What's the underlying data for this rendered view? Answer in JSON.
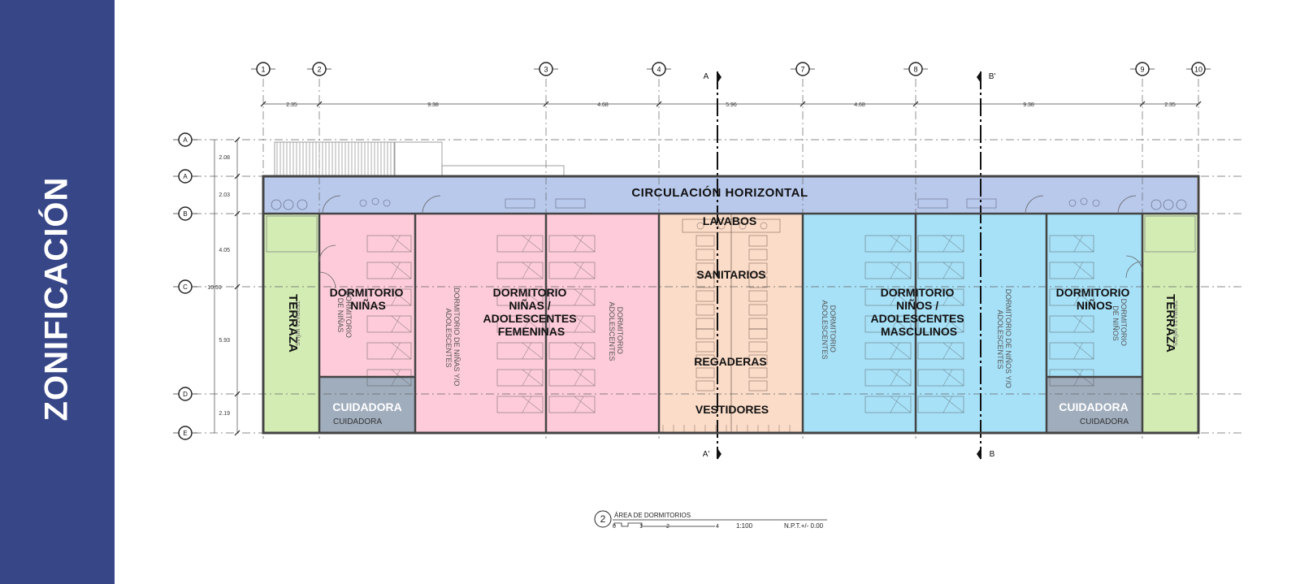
{
  "sidebar": {
    "title": "ZONIFICACIÓN"
  },
  "colors": {
    "sidebar": "#374687",
    "circulation": "#b9c9ec",
    "terrace": "#d3ecb4",
    "girls": "#fdcbd9",
    "sanitary": "#fbdcc8",
    "boys": "#a7e1f8",
    "caregiver": "#a0adbd"
  },
  "plan": {
    "axes_columns": [
      "1",
      "2",
      "3",
      "4",
      "7",
      "8",
      "9",
      "10"
    ],
    "axes_rows": [
      "A",
      "A",
      "B",
      "C",
      "D",
      "E"
    ],
    "dims_horizontal": [
      "2.35",
      "9.38",
      "4.68",
      "5.96",
      "4.68",
      "9.38",
      "2.35"
    ],
    "dims_vertical": [
      "2.08",
      "2.03",
      "4.05",
      "5.93",
      "2.19"
    ],
    "dim_total": "10.59",
    "section_marks": {
      "a_top": "A",
      "a_bottom": "A'",
      "b_top": "B'",
      "b_bottom": "B"
    },
    "zones": {
      "circulation": "CIRCULACIÓN HORIZONTAL",
      "terrace_left": "TERRAZA",
      "terrace_left_small": "TERRAZA NIÑAS",
      "terrace_right": "TERRAZA",
      "terrace_right_small": "TERRAZA NIÑOS",
      "girls_dorm": [
        "DORMITORIO",
        "NIÑAS"
      ],
      "girls_dorm_small": [
        "DORMITORIO",
        "DE NIÑAS"
      ],
      "girls_teen": [
        "DORMITORIO",
        "NIÑAS /",
        "ADOLESCENTES",
        "FEMENINAS"
      ],
      "girls_teen_small_a": [
        "DORMITORIO DE NIÑAS Y/O",
        "ADOLESCENTES"
      ],
      "girls_teen_small_b": [
        "DORMITORIO",
        "ADOLESCENTES"
      ],
      "lavabos": "LAVABOS",
      "sanitarios": "SANITARIOS",
      "regaderas": "REGADERAS",
      "vestidores": "VESTIDORES",
      "boys_teen": [
        "DORMITORIO",
        "NIÑOS /",
        "ADOLESCENTES",
        "MASCULINOS"
      ],
      "boys_teen_small_a": [
        "DORMITORIO",
        "ADOLESCENTES"
      ],
      "boys_teen_small_b": [
        "DORMITORIO DE NIÑOS Y/O",
        "ADOLESCENTES"
      ],
      "boys_dorm": [
        "DORMITORIO",
        "NIÑOS"
      ],
      "boys_dorm_small": [
        "DORMITORIO",
        "DE NIÑOS"
      ],
      "caregiver_left": "CUIDADORA",
      "caregiver_left_small": "CUIDADORA",
      "caregiver_right": "CUIDADORA",
      "caregiver_right_small": "CUIDADORA"
    },
    "caption": {
      "number": "2",
      "title": "ÁREA DE DORMITORIOS",
      "scale_ticks": [
        "0",
        "1",
        "2",
        "4"
      ],
      "scale": "1:100",
      "level": "N.P.T.+/- 0.00"
    }
  }
}
